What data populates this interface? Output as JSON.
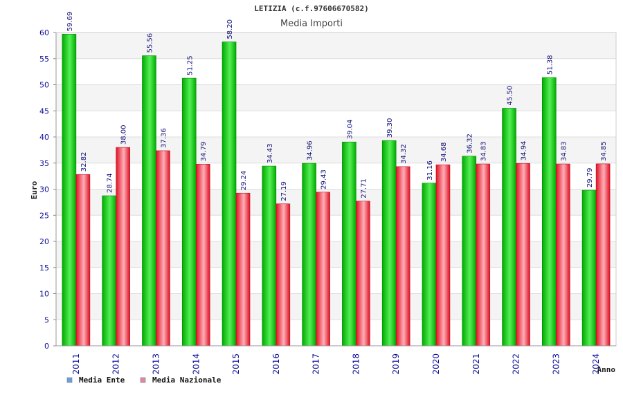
{
  "chart_data": {
    "type": "bar",
    "title": "LETIZIA (c.f.97606670582)",
    "subtitle": "Media Importi",
    "xlabel": "Anno",
    "ylabel": "Euro",
    "ylim": [
      0,
      60
    ],
    "yticks": [
      0,
      5,
      10,
      15,
      20,
      25,
      30,
      35,
      40,
      45,
      50,
      55,
      60
    ],
    "grid": true,
    "legend_position": "bottom-left",
    "categories": [
      "2011",
      "2012",
      "2013",
      "2014",
      "2015",
      "2016",
      "2017",
      "2018",
      "2019",
      "2020",
      "2021",
      "2022",
      "2023",
      "2024"
    ],
    "series": [
      {
        "name": "Media Ente",
        "legend_swatch": "#6aa0e0",
        "bar_color": "#00bb00",
        "values": [
          59.69,
          28.74,
          55.56,
          51.25,
          58.2,
          34.43,
          34.96,
          39.04,
          39.3,
          31.16,
          36.32,
          45.5,
          51.38,
          29.79
        ],
        "labels": [
          "59.69",
          "28.74",
          "55.56",
          "51.25",
          "58.20",
          "34.43",
          "34.96",
          "39.04",
          "39.30",
          "31.16",
          "36.32",
          "45.50",
          "51.38",
          "29.79"
        ]
      },
      {
        "name": "Media Nazionale",
        "legend_swatch": "#dd88aa",
        "bar_color": "#ee2233",
        "values": [
          32.82,
          38.0,
          37.36,
          34.79,
          29.24,
          27.19,
          29.43,
          27.71,
          34.32,
          34.68,
          34.83,
          34.94,
          34.83,
          34.85
        ],
        "labels": [
          "32.82",
          "38.00",
          "37.36",
          "34.79",
          "29.24",
          "27.19",
          "29.43",
          "27.71",
          "34.32",
          "34.68",
          "34.83",
          "34.94",
          "34.83",
          "34.85"
        ]
      }
    ]
  }
}
